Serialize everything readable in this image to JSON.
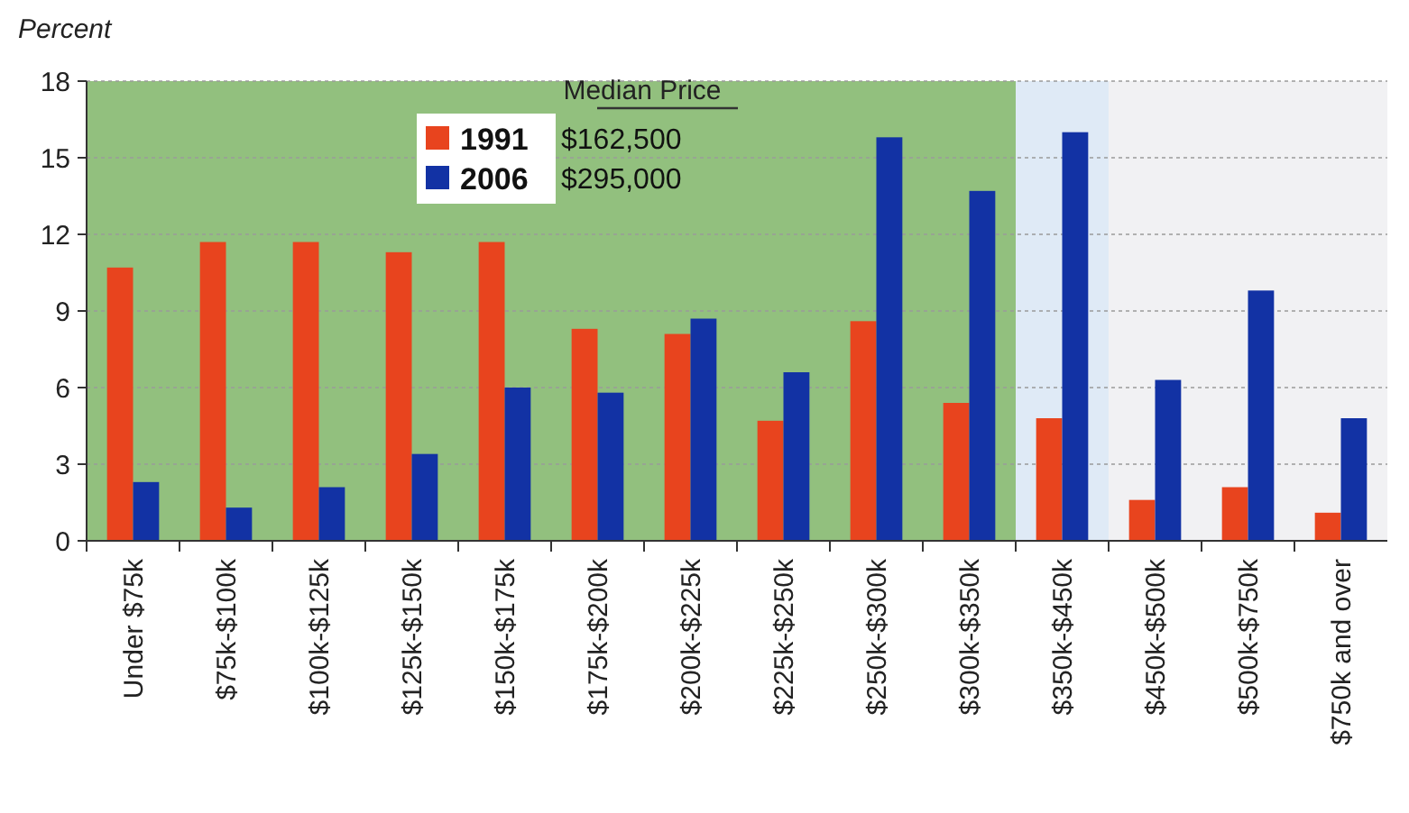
{
  "chart_data": {
    "type": "bar",
    "ylabel": "Percent",
    "legend_title": "Median Price",
    "categories": [
      "Under $75k",
      "$75k-$100k",
      "$100k-$125k",
      "$125k-$150k",
      "$150k-$175k",
      "$175k-$200k",
      "$200k-$225k",
      "$225k-$250k",
      "$250k-$300k",
      "$300k-$350k",
      "$350k-$450k",
      "$450k-$500k",
      "$500k-$750k",
      "$750k and over"
    ],
    "series": [
      {
        "name": "1991",
        "color": "#e8441e",
        "values": [
          10.7,
          11.7,
          11.7,
          11.3,
          11.7,
          8.3,
          8.1,
          4.7,
          8.6,
          5.4,
          4.8,
          1.6,
          2.1,
          1.1
        ]
      },
      {
        "name": "2006",
        "color": "#1232a4",
        "values": [
          2.3,
          1.3,
          2.1,
          3.4,
          6.0,
          5.8,
          8.7,
          6.6,
          15.8,
          13.7,
          16.0,
          6.3,
          9.8,
          4.8
        ]
      }
    ],
    "annotations": [
      "$162,500",
      "$295,000"
    ],
    "bands": [
      {
        "axis": "x",
        "from": "Under $75k",
        "to": "$300k-$350k",
        "color": "#92c07e"
      },
      {
        "axis": "x",
        "from": "$350k-$450k",
        "to": "$350k-$450k",
        "color": "#dfeaf6"
      }
    ],
    "ylim": [
      0,
      18
    ],
    "yticks": [
      0,
      3,
      6,
      9,
      12,
      15,
      18
    ],
    "grid": "y",
    "legend": "top"
  }
}
